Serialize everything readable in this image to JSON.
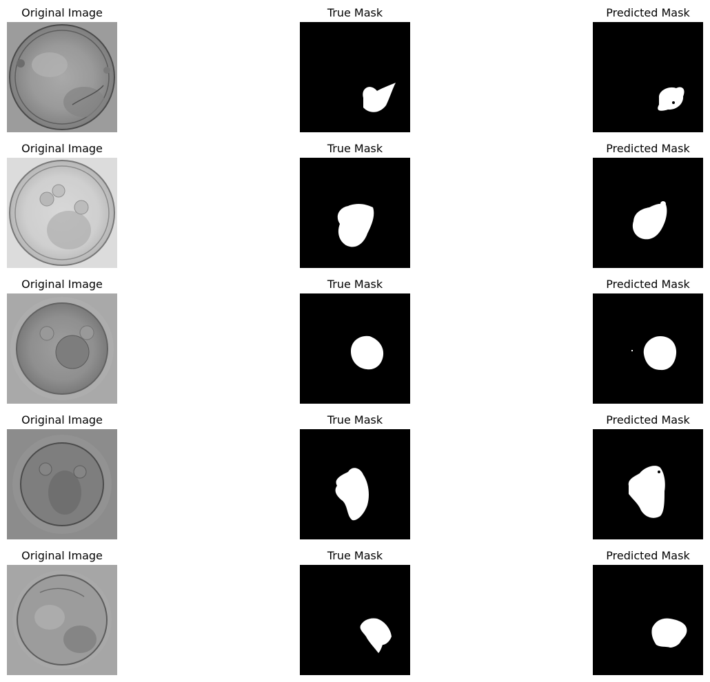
{
  "figure": {
    "rows": [
      {
        "original_title": "Original Image",
        "true_title": "True Mask",
        "pred_title": "Predicted Mask"
      },
      {
        "original_title": "Original Image",
        "true_title": "True Mask",
        "pred_title": "Predicted Mask"
      },
      {
        "original_title": "Original Image",
        "true_title": "True Mask",
        "pred_title": "Predicted Mask"
      },
      {
        "original_title": "Original Image",
        "true_title": "True Mask",
        "pred_title": "Predicted Mask"
      },
      {
        "original_title": "Original Image",
        "true_title": "True Mask",
        "pred_title": "Predicted Mask"
      }
    ]
  },
  "colors": {
    "mask_background": "#000000",
    "mask_foreground": "#ffffff"
  }
}
